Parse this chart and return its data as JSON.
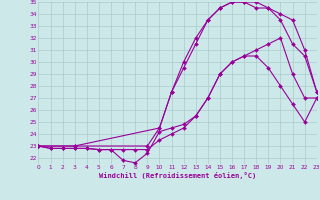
{
  "xlabel": "Windchill (Refroidissement éolien,°C)",
  "bg_color": "#cce8e8",
  "line_color": "#990099",
  "grid_color": "#aacccc",
  "xmin": 0,
  "xmax": 23,
  "ymin": 21.5,
  "ymax": 35,
  "yticks": [
    22,
    23,
    24,
    25,
    26,
    27,
    28,
    29,
    30,
    31,
    32,
    33,
    34,
    35
  ],
  "xticks": [
    0,
    1,
    2,
    3,
    4,
    5,
    6,
    7,
    8,
    9,
    10,
    11,
    12,
    13,
    14,
    15,
    16,
    17,
    18,
    19,
    20,
    21,
    22,
    23
  ],
  "line1_x": [
    0,
    1,
    2,
    3,
    4,
    5,
    6,
    7,
    8,
    9,
    10,
    11,
    12,
    13,
    14,
    15,
    16,
    17,
    18,
    19,
    20,
    21,
    22,
    23
  ],
  "line1_y": [
    23,
    22.8,
    22.8,
    22.8,
    22.8,
    22.7,
    22.7,
    21.8,
    21.6,
    22.4,
    24.2,
    24.5,
    24.8,
    25.5,
    27,
    29,
    30,
    30.5,
    30.5,
    29.5,
    28,
    26.5,
    25,
    27
  ],
  "line2_x": [
    0,
    1,
    2,
    3,
    4,
    5,
    6,
    7,
    8,
    9,
    10,
    11,
    12,
    13,
    14,
    15,
    16,
    17,
    18,
    19,
    20,
    21,
    22,
    23
  ],
  "line2_y": [
    23,
    22.8,
    22.8,
    22.8,
    22.8,
    22.7,
    22.7,
    22.7,
    22.7,
    22.7,
    23.5,
    24,
    24.5,
    25.5,
    27,
    29,
    30,
    30.5,
    31,
    31.5,
    32,
    29,
    27,
    27
  ],
  "line3_x": [
    0,
    3,
    9,
    10,
    11,
    12,
    13,
    14,
    15,
    16,
    17,
    18,
    19,
    20,
    21,
    22,
    23
  ],
  "line3_y": [
    23,
    23,
    23,
    24.5,
    27.5,
    29.5,
    31.5,
    33.5,
    34.5,
    35,
    35,
    34.5,
    34.5,
    33.5,
    31.5,
    30.5,
    27.5
  ],
  "line4_x": [
    0,
    3,
    10,
    11,
    12,
    13,
    14,
    15,
    16,
    17,
    18,
    19,
    20,
    21,
    22,
    23
  ],
  "line4_y": [
    23,
    23,
    24.5,
    27.5,
    30,
    32,
    33.5,
    34.5,
    35,
    35,
    35,
    34.5,
    34,
    33.5,
    31,
    27.5
  ]
}
